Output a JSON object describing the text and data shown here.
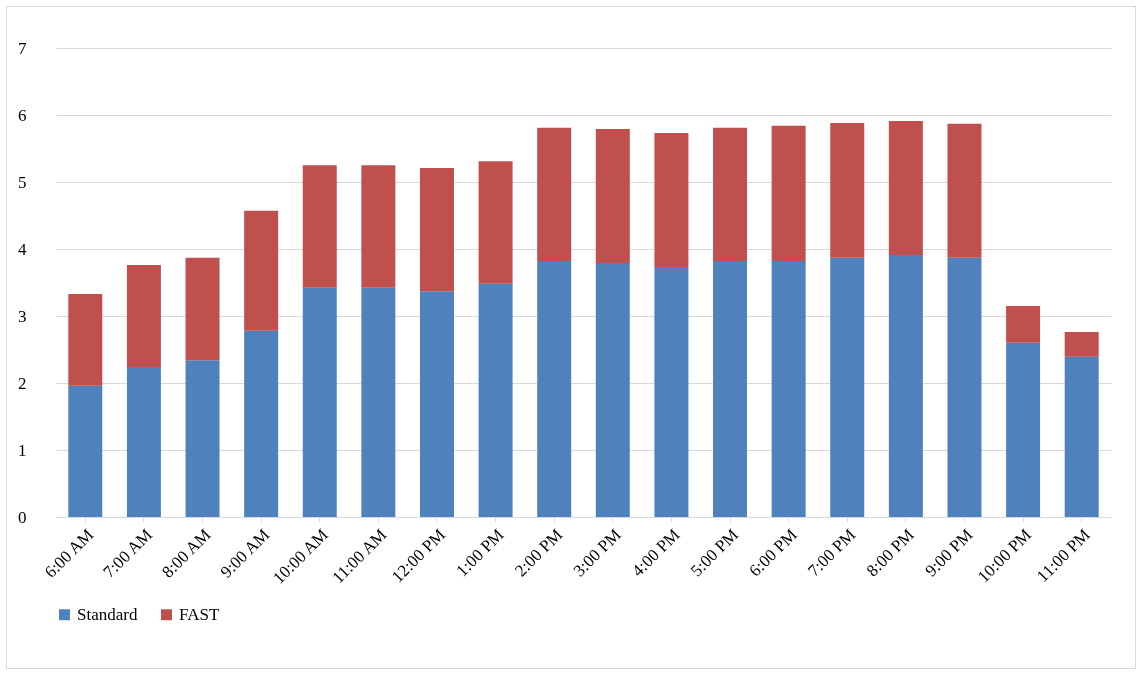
{
  "chart_data": {
    "type": "bar",
    "stacked": true,
    "categories": [
      "6:00 AM",
      "7:00 AM",
      "8:00 AM",
      "9:00 AM",
      "10:00 AM",
      "11:00 AM",
      "12:00 PM",
      "1:00 PM",
      "2:00 PM",
      "3:00 PM",
      "4:00 PM",
      "5:00 PM",
      "6:00 PM",
      "7:00 PM",
      "8:00 PM",
      "9:00 PM",
      "10:00 PM",
      "11:00 PM"
    ],
    "series": [
      {
        "name": "Standard",
        "color": "#4f81bd",
        "values": [
          1.96,
          2.24,
          2.34,
          2.78,
          3.42,
          3.42,
          3.37,
          3.48,
          3.82,
          3.79,
          3.73,
          3.82,
          3.82,
          3.87,
          3.91,
          3.87,
          2.6,
          2.39
        ]
      },
      {
        "name": "FAST",
        "color": "#c0504d",
        "values": [
          1.37,
          1.52,
          1.53,
          1.79,
          1.83,
          1.83,
          1.84,
          1.83,
          1.99,
          2.0,
          2.0,
          1.99,
          2.02,
          2.01,
          2.0,
          2.0,
          0.55,
          0.37
        ]
      }
    ],
    "ylim": [
      0,
      7
    ],
    "yticks": [
      0,
      1,
      2,
      3,
      4,
      5,
      6,
      7
    ],
    "grid": "y",
    "legend": "bottom"
  }
}
